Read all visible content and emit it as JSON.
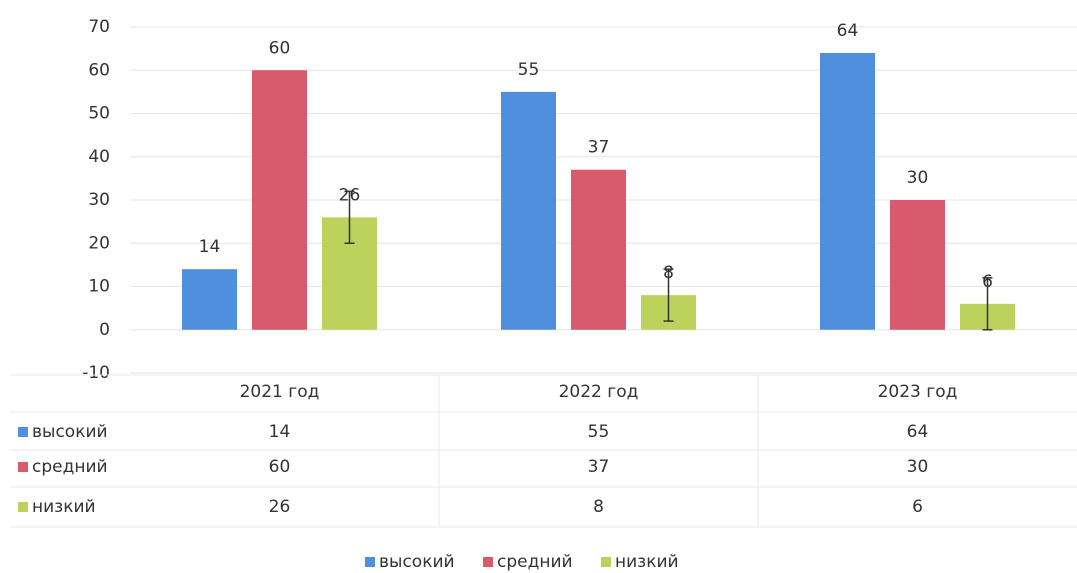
{
  "chart_data": {
    "type": "bar",
    "categories": [
      "2021 год",
      "2022 год",
      "2023 год"
    ],
    "series": [
      {
        "name": "высокий",
        "color": "#4f8fde",
        "values": [
          14,
          55,
          64
        ]
      },
      {
        "name": "средний",
        "color": "#d95a6c",
        "values": [
          60,
          37,
          30
        ]
      },
      {
        "name": "низкий",
        "color": "#bdd25c",
        "values": [
          26,
          8,
          6
        ],
        "errors": [
          6,
          6,
          6
        ]
      }
    ],
    "ylim": [
      -10,
      70
    ],
    "yticks": [
      -10,
      0,
      10,
      20,
      30,
      40,
      50,
      60,
      70
    ],
    "grid": true,
    "legend": "bottom",
    "data_table": true
  }
}
